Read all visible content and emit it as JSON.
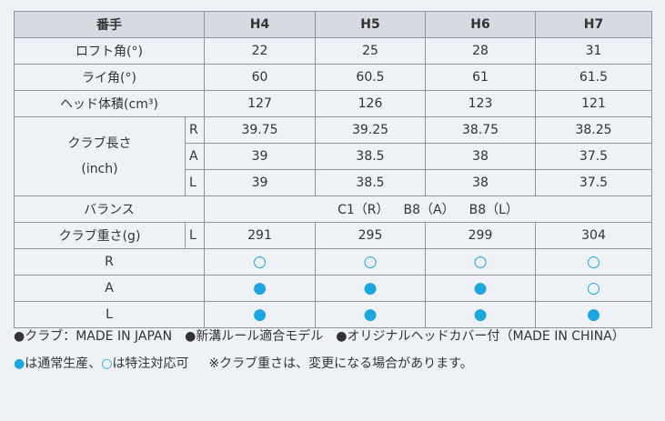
{
  "table": {
    "header": [
      "番手",
      "H4",
      "H5",
      "H6",
      "H7"
    ],
    "loft": {
      "label": "ロフト角(°)",
      "values": [
        22,
        25,
        28,
        31
      ]
    },
    "lie": {
      "label": "ライ角(°)",
      "values": [
        60,
        60.5,
        61,
        61.5
      ]
    },
    "volume": {
      "label": "ヘッド体積(cm³)",
      "values": [
        127,
        126,
        123,
        121
      ]
    },
    "length": {
      "label": [
        "クラブ長さ",
        "(inch)"
      ],
      "rows": [
        {
          "flex": "R",
          "values": [
            39.75,
            39.25,
            38.75,
            38.25
          ]
        },
        {
          "flex": "A",
          "values": [
            39,
            38.5,
            38,
            37.5
          ]
        },
        {
          "flex": "L",
          "values": [
            39,
            38.5,
            38,
            37.5
          ]
        }
      ]
    },
    "balance": {
      "label": "バランス",
      "values": [
        "C1（R）",
        "B8（A）",
        "B8（L）"
      ]
    },
    "weight": {
      "label": "クラブ重さ(g)",
      "flex": "L",
      "values": [
        291,
        295,
        299,
        304
      ]
    },
    "availability": [
      {
        "flex": "R",
        "values": [
          "○",
          "○",
          "○",
          "○"
        ]
      },
      {
        "flex": "A",
        "values": [
          "●",
          "●",
          "●",
          "○"
        ]
      },
      {
        "flex": "L",
        "values": [
          "●",
          "●",
          "●",
          "●"
        ]
      }
    ]
  },
  "notes": {
    "line1": [
      "●クラブ：MADE IN JAPAN",
      "●新溝ルール適合モデル",
      "●オリジナルヘッドカバー付（MADE IN CHINA）"
    ],
    "legend": [
      {
        "mark": "●",
        "text": "は通常生産、"
      },
      {
        "mark": "○",
        "text": "は特注対応可"
      }
    ],
    "caution": "※クラブ重さは、変更になる場合があります。"
  }
}
